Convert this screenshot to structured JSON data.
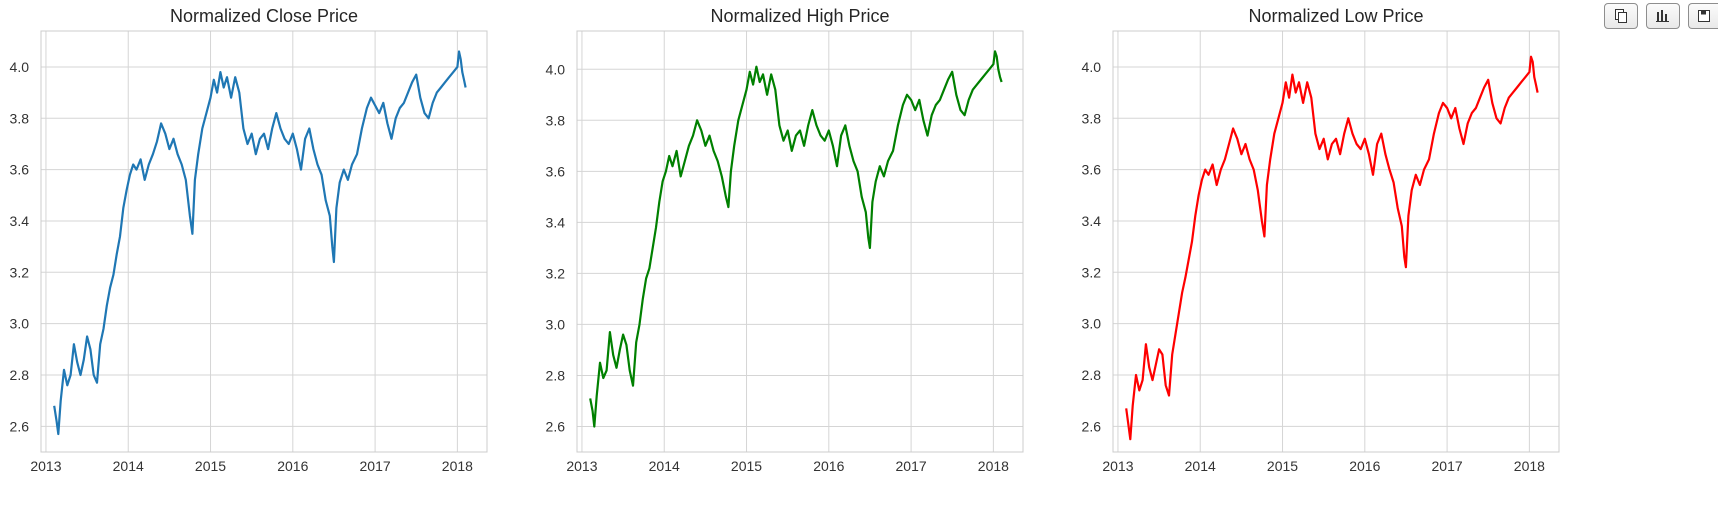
{
  "toolbar": {
    "buttons": [
      {
        "icon": "copy-icon"
      },
      {
        "icon": "bar-chart-icon"
      },
      {
        "icon": "save-icon"
      }
    ]
  },
  "chart_data": [
    {
      "type": "line",
      "title": "Normalized Close Price",
      "color": "#1f77b4",
      "xlabel": "",
      "ylabel": "",
      "grid": true,
      "xlim": [
        2012.94,
        2018.36
      ],
      "ylim": [
        2.5,
        4.14
      ],
      "xticks": [
        2013,
        2014,
        2015,
        2016,
        2017,
        2018
      ],
      "xtick_labels": [
        "2013",
        "2014",
        "2015",
        "2016",
        "2017",
        "2018"
      ],
      "yticks": [
        2.6,
        2.8,
        3.0,
        3.2,
        3.4,
        3.6,
        3.8,
        4.0
      ],
      "ytick_labels": [
        "2.6",
        "2.8",
        "3.0",
        "3.2",
        "3.4",
        "3.6",
        "3.8",
        "4.0"
      ],
      "series": [
        {
          "x": [
            2013.1,
            2013.13,
            2013.15,
            2013.18,
            2013.22,
            2013.26,
            2013.3,
            2013.34,
            2013.38,
            2013.42,
            2013.46,
            2013.5,
            2013.54,
            2013.58,
            2013.62,
            2013.66,
            2013.7,
            2013.74,
            2013.78,
            2013.82,
            2013.86,
            2013.9,
            2013.94,
            2013.98,
            2014.02,
            2014.06,
            2014.1,
            2014.15,
            2014.2,
            2014.25,
            2014.3,
            2014.35,
            2014.4,
            2014.45,
            2014.5,
            2014.55,
            2014.6,
            2014.65,
            2014.7,
            2014.75,
            2014.78,
            2014.81,
            2014.85,
            2014.9,
            2014.95,
            2015.0,
            2015.04,
            2015.08,
            2015.12,
            2015.16,
            2015.2,
            2015.25,
            2015.3,
            2015.35,
            2015.4,
            2015.45,
            2015.5,
            2015.55,
            2015.6,
            2015.65,
            2015.7,
            2015.75,
            2015.8,
            2015.85,
            2015.9,
            2015.95,
            2016.0,
            2016.05,
            2016.1,
            2016.15,
            2016.2,
            2016.25,
            2016.3,
            2016.35,
            2016.4,
            2016.45,
            2016.48,
            2016.5,
            2016.53,
            2016.57,
            2016.62,
            2016.67,
            2016.72,
            2016.78,
            2016.84,
            2016.9,
            2016.95,
            2017.0,
            2017.05,
            2017.1,
            2017.15,
            2017.2,
            2017.25,
            2017.3,
            2017.35,
            2017.4,
            2017.45,
            2017.5,
            2017.55,
            2017.6,
            2017.65,
            2017.7,
            2017.75,
            2017.8,
            2017.85,
            2017.9,
            2017.95,
            2018.0,
            2018.02,
            2018.04,
            2018.06,
            2018.08,
            2018.1
          ],
          "y": [
            2.68,
            2.62,
            2.57,
            2.7,
            2.82,
            2.76,
            2.8,
            2.92,
            2.85,
            2.8,
            2.86,
            2.95,
            2.9,
            2.8,
            2.77,
            2.92,
            2.98,
            3.07,
            3.14,
            3.19,
            3.27,
            3.34,
            3.45,
            3.52,
            3.58,
            3.62,
            3.6,
            3.64,
            3.56,
            3.62,
            3.66,
            3.71,
            3.78,
            3.74,
            3.68,
            3.72,
            3.66,
            3.62,
            3.56,
            3.42,
            3.35,
            3.56,
            3.66,
            3.76,
            3.82,
            3.88,
            3.95,
            3.9,
            3.98,
            3.92,
            3.96,
            3.88,
            3.96,
            3.9,
            3.76,
            3.7,
            3.74,
            3.66,
            3.72,
            3.74,
            3.68,
            3.76,
            3.82,
            3.76,
            3.72,
            3.7,
            3.74,
            3.68,
            3.6,
            3.72,
            3.76,
            3.68,
            3.62,
            3.58,
            3.48,
            3.42,
            3.3,
            3.24,
            3.45,
            3.55,
            3.6,
            3.56,
            3.62,
            3.66,
            3.76,
            3.84,
            3.88,
            3.85,
            3.82,
            3.86,
            3.78,
            3.72,
            3.8,
            3.84,
            3.86,
            3.9,
            3.94,
            3.97,
            3.88,
            3.82,
            3.8,
            3.86,
            3.9,
            3.92,
            3.94,
            3.96,
            3.98,
            4.0,
            4.06,
            4.03,
            3.98,
            3.95,
            3.92
          ]
        }
      ]
    },
    {
      "type": "line",
      "title": "Normalized High Price",
      "color": "#008000",
      "xlabel": "",
      "ylabel": "",
      "grid": true,
      "xlim": [
        2012.94,
        2018.36
      ],
      "ylim": [
        2.5,
        4.15
      ],
      "xticks": [
        2013,
        2014,
        2015,
        2016,
        2017,
        2018
      ],
      "xtick_labels": [
        "2013",
        "2014",
        "2015",
        "2016",
        "2017",
        "2018"
      ],
      "yticks": [
        2.6,
        2.8,
        3.0,
        3.2,
        3.4,
        3.6,
        3.8,
        4.0
      ],
      "ytick_labels": [
        "2.6",
        "2.8",
        "3.0",
        "3.2",
        "3.4",
        "3.6",
        "3.8",
        "4.0"
      ],
      "series": [
        {
          "x": [
            2013.1,
            2013.13,
            2013.15,
            2013.18,
            2013.22,
            2013.26,
            2013.3,
            2013.34,
            2013.38,
            2013.42,
            2013.46,
            2013.5,
            2013.54,
            2013.58,
            2013.62,
            2013.66,
            2013.7,
            2013.74,
            2013.78,
            2013.82,
            2013.86,
            2013.9,
            2013.94,
            2013.98,
            2014.02,
            2014.06,
            2014.1,
            2014.15,
            2014.2,
            2014.25,
            2014.3,
            2014.35,
            2014.4,
            2014.45,
            2014.5,
            2014.55,
            2014.6,
            2014.65,
            2014.7,
            2014.75,
            2014.78,
            2014.81,
            2014.85,
            2014.9,
            2014.95,
            2015.0,
            2015.04,
            2015.08,
            2015.12,
            2015.16,
            2015.2,
            2015.25,
            2015.3,
            2015.35,
            2015.4,
            2015.45,
            2015.5,
            2015.55,
            2015.6,
            2015.65,
            2015.7,
            2015.75,
            2015.8,
            2015.85,
            2015.9,
            2015.95,
            2016.0,
            2016.05,
            2016.1,
            2016.15,
            2016.2,
            2016.25,
            2016.3,
            2016.35,
            2016.4,
            2016.45,
            2016.48,
            2016.5,
            2016.53,
            2016.57,
            2016.62,
            2016.67,
            2016.72,
            2016.78,
            2016.84,
            2016.9,
            2016.95,
            2017.0,
            2017.05,
            2017.1,
            2017.15,
            2017.2,
            2017.25,
            2017.3,
            2017.35,
            2017.4,
            2017.45,
            2017.5,
            2017.55,
            2017.6,
            2017.65,
            2017.7,
            2017.75,
            2017.8,
            2017.85,
            2017.9,
            2017.95,
            2018.0,
            2018.02,
            2018.04,
            2018.06,
            2018.08,
            2018.1
          ],
          "y": [
            2.71,
            2.66,
            2.6,
            2.72,
            2.85,
            2.79,
            2.82,
            2.97,
            2.88,
            2.83,
            2.9,
            2.96,
            2.92,
            2.82,
            2.76,
            2.93,
            3.0,
            3.1,
            3.18,
            3.22,
            3.3,
            3.38,
            3.48,
            3.56,
            3.6,
            3.66,
            3.62,
            3.68,
            3.58,
            3.64,
            3.7,
            3.74,
            3.8,
            3.76,
            3.7,
            3.74,
            3.68,
            3.64,
            3.58,
            3.5,
            3.46,
            3.6,
            3.7,
            3.8,
            3.86,
            3.92,
            3.99,
            3.94,
            4.01,
            3.95,
            3.98,
            3.9,
            3.98,
            3.92,
            3.78,
            3.72,
            3.76,
            3.68,
            3.74,
            3.76,
            3.7,
            3.78,
            3.84,
            3.78,
            3.74,
            3.72,
            3.76,
            3.7,
            3.62,
            3.74,
            3.78,
            3.7,
            3.64,
            3.6,
            3.5,
            3.44,
            3.34,
            3.3,
            3.48,
            3.56,
            3.62,
            3.58,
            3.64,
            3.68,
            3.78,
            3.86,
            3.9,
            3.88,
            3.84,
            3.88,
            3.8,
            3.74,
            3.82,
            3.86,
            3.88,
            3.92,
            3.96,
            3.99,
            3.9,
            3.84,
            3.82,
            3.88,
            3.92,
            3.94,
            3.96,
            3.98,
            4.0,
            4.02,
            4.07,
            4.05,
            4.0,
            3.97,
            3.95
          ]
        }
      ]
    },
    {
      "type": "line",
      "title": "Normalized Low Price",
      "color": "#ff0000",
      "xlabel": "",
      "ylabel": "",
      "grid": true,
      "xlim": [
        2012.94,
        2018.36
      ],
      "ylim": [
        2.5,
        4.14
      ],
      "xticks": [
        2013,
        2014,
        2015,
        2016,
        2017,
        2018
      ],
      "xtick_labels": [
        "2013",
        "2014",
        "2015",
        "2016",
        "2017",
        "2018"
      ],
      "yticks": [
        2.6,
        2.8,
        3.0,
        3.2,
        3.4,
        3.6,
        3.8,
        4.0
      ],
      "ytick_labels": [
        "2.6",
        "2.8",
        "3.0",
        "3.2",
        "3.4",
        "3.6",
        "3.8",
        "4.0"
      ],
      "series": [
        {
          "x": [
            2013.1,
            2013.13,
            2013.15,
            2013.18,
            2013.22,
            2013.26,
            2013.3,
            2013.34,
            2013.38,
            2013.42,
            2013.46,
            2013.5,
            2013.54,
            2013.58,
            2013.62,
            2013.66,
            2013.7,
            2013.74,
            2013.78,
            2013.82,
            2013.86,
            2013.9,
            2013.94,
            2013.98,
            2014.02,
            2014.06,
            2014.1,
            2014.15,
            2014.2,
            2014.25,
            2014.3,
            2014.35,
            2014.4,
            2014.45,
            2014.5,
            2014.55,
            2014.6,
            2014.65,
            2014.7,
            2014.75,
            2014.78,
            2014.81,
            2014.85,
            2014.9,
            2014.95,
            2015.0,
            2015.04,
            2015.08,
            2015.12,
            2015.16,
            2015.2,
            2015.25,
            2015.3,
            2015.35,
            2015.4,
            2015.45,
            2015.5,
            2015.55,
            2015.6,
            2015.65,
            2015.7,
            2015.75,
            2015.8,
            2015.85,
            2015.9,
            2015.95,
            2016.0,
            2016.05,
            2016.1,
            2016.15,
            2016.2,
            2016.25,
            2016.3,
            2016.35,
            2016.4,
            2016.45,
            2016.48,
            2016.5,
            2016.53,
            2016.57,
            2016.62,
            2016.67,
            2016.72,
            2016.78,
            2016.84,
            2016.9,
            2016.95,
            2017.0,
            2017.05,
            2017.1,
            2017.15,
            2017.2,
            2017.25,
            2017.3,
            2017.35,
            2017.4,
            2017.45,
            2017.5,
            2017.55,
            2017.6,
            2017.65,
            2017.7,
            2017.75,
            2017.8,
            2017.85,
            2017.9,
            2017.95,
            2018.0,
            2018.02,
            2018.04,
            2018.06,
            2018.08,
            2018.1
          ],
          "y": [
            2.67,
            2.6,
            2.55,
            2.68,
            2.8,
            2.74,
            2.78,
            2.92,
            2.83,
            2.78,
            2.84,
            2.9,
            2.88,
            2.76,
            2.72,
            2.88,
            2.96,
            3.04,
            3.12,
            3.18,
            3.25,
            3.32,
            3.42,
            3.5,
            3.56,
            3.6,
            3.58,
            3.62,
            3.54,
            3.6,
            3.64,
            3.7,
            3.76,
            3.72,
            3.66,
            3.7,
            3.64,
            3.6,
            3.52,
            3.4,
            3.34,
            3.54,
            3.64,
            3.74,
            3.8,
            3.86,
            3.94,
            3.88,
            3.97,
            3.9,
            3.94,
            3.86,
            3.94,
            3.88,
            3.74,
            3.68,
            3.72,
            3.64,
            3.7,
            3.72,
            3.66,
            3.74,
            3.8,
            3.74,
            3.7,
            3.68,
            3.72,
            3.66,
            3.58,
            3.7,
            3.74,
            3.66,
            3.6,
            3.55,
            3.45,
            3.38,
            3.26,
            3.22,
            3.42,
            3.52,
            3.58,
            3.54,
            3.6,
            3.64,
            3.74,
            3.82,
            3.86,
            3.84,
            3.8,
            3.84,
            3.76,
            3.7,
            3.78,
            3.82,
            3.84,
            3.88,
            3.92,
            3.95,
            3.86,
            3.8,
            3.78,
            3.84,
            3.88,
            3.9,
            3.92,
            3.94,
            3.96,
            3.98,
            4.04,
            4.02,
            3.96,
            3.93,
            3.9
          ]
        }
      ]
    }
  ]
}
